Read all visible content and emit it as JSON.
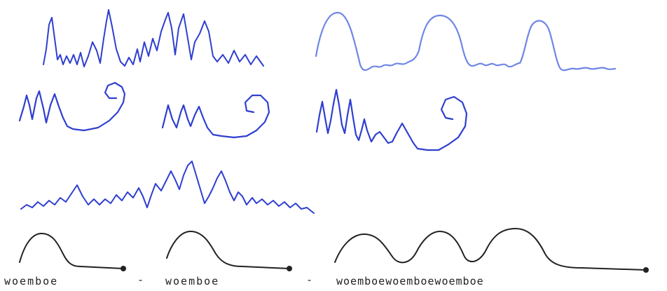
{
  "colors": {
    "ink_blue": "#2f3fd0",
    "ink_light_blue": "#6f86e6",
    "ink_black": "#222222",
    "paper": "#ffffff"
  },
  "labels": {
    "word_1": "woemboe",
    "dash_1": "-",
    "word_2": "woemboe",
    "dash_2": "-",
    "word_3": "woemboewoemboewoemboe"
  }
}
